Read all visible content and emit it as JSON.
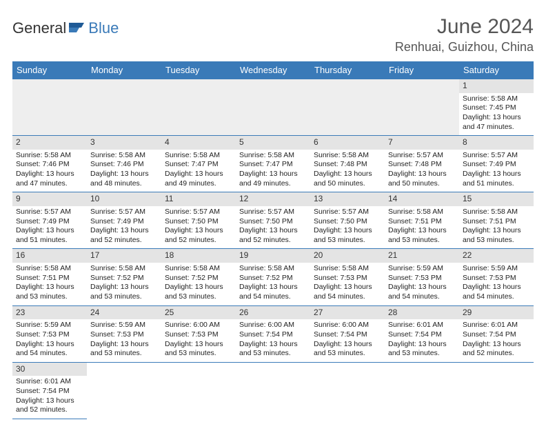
{
  "brand": {
    "part1": "General",
    "part2": "Blue"
  },
  "title": "June 2024",
  "location": "Renhuai, Guizhou, China",
  "colors": {
    "accent": "#3a7ab8",
    "header_bg": "#3a7ab8",
    "grey": "#eeeeee"
  },
  "weekdays": [
    "Sunday",
    "Monday",
    "Tuesday",
    "Wednesday",
    "Thursday",
    "Friday",
    "Saturday"
  ],
  "weeks": [
    [
      null,
      null,
      null,
      null,
      null,
      null,
      {
        "n": "1",
        "sunrise": "Sunrise: 5:58 AM",
        "sunset": "Sunset: 7:45 PM",
        "day": "Daylight: 13 hours and 47 minutes."
      }
    ],
    [
      {
        "n": "2",
        "sunrise": "Sunrise: 5:58 AM",
        "sunset": "Sunset: 7:46 PM",
        "day": "Daylight: 13 hours and 47 minutes."
      },
      {
        "n": "3",
        "sunrise": "Sunrise: 5:58 AM",
        "sunset": "Sunset: 7:46 PM",
        "day": "Daylight: 13 hours and 48 minutes."
      },
      {
        "n": "4",
        "sunrise": "Sunrise: 5:58 AM",
        "sunset": "Sunset: 7:47 PM",
        "day": "Daylight: 13 hours and 49 minutes."
      },
      {
        "n": "5",
        "sunrise": "Sunrise: 5:58 AM",
        "sunset": "Sunset: 7:47 PM",
        "day": "Daylight: 13 hours and 49 minutes."
      },
      {
        "n": "6",
        "sunrise": "Sunrise: 5:58 AM",
        "sunset": "Sunset: 7:48 PM",
        "day": "Daylight: 13 hours and 50 minutes."
      },
      {
        "n": "7",
        "sunrise": "Sunrise: 5:57 AM",
        "sunset": "Sunset: 7:48 PM",
        "day": "Daylight: 13 hours and 50 minutes."
      },
      {
        "n": "8",
        "sunrise": "Sunrise: 5:57 AM",
        "sunset": "Sunset: 7:49 PM",
        "day": "Daylight: 13 hours and 51 minutes."
      }
    ],
    [
      {
        "n": "9",
        "sunrise": "Sunrise: 5:57 AM",
        "sunset": "Sunset: 7:49 PM",
        "day": "Daylight: 13 hours and 51 minutes."
      },
      {
        "n": "10",
        "sunrise": "Sunrise: 5:57 AM",
        "sunset": "Sunset: 7:49 PM",
        "day": "Daylight: 13 hours and 52 minutes."
      },
      {
        "n": "11",
        "sunrise": "Sunrise: 5:57 AM",
        "sunset": "Sunset: 7:50 PM",
        "day": "Daylight: 13 hours and 52 minutes."
      },
      {
        "n": "12",
        "sunrise": "Sunrise: 5:57 AM",
        "sunset": "Sunset: 7:50 PM",
        "day": "Daylight: 13 hours and 52 minutes."
      },
      {
        "n": "13",
        "sunrise": "Sunrise: 5:57 AM",
        "sunset": "Sunset: 7:50 PM",
        "day": "Daylight: 13 hours and 53 minutes."
      },
      {
        "n": "14",
        "sunrise": "Sunrise: 5:58 AM",
        "sunset": "Sunset: 7:51 PM",
        "day": "Daylight: 13 hours and 53 minutes."
      },
      {
        "n": "15",
        "sunrise": "Sunrise: 5:58 AM",
        "sunset": "Sunset: 7:51 PM",
        "day": "Daylight: 13 hours and 53 minutes."
      }
    ],
    [
      {
        "n": "16",
        "sunrise": "Sunrise: 5:58 AM",
        "sunset": "Sunset: 7:51 PM",
        "day": "Daylight: 13 hours and 53 minutes."
      },
      {
        "n": "17",
        "sunrise": "Sunrise: 5:58 AM",
        "sunset": "Sunset: 7:52 PM",
        "day": "Daylight: 13 hours and 53 minutes."
      },
      {
        "n": "18",
        "sunrise": "Sunrise: 5:58 AM",
        "sunset": "Sunset: 7:52 PM",
        "day": "Daylight: 13 hours and 53 minutes."
      },
      {
        "n": "19",
        "sunrise": "Sunrise: 5:58 AM",
        "sunset": "Sunset: 7:52 PM",
        "day": "Daylight: 13 hours and 54 minutes."
      },
      {
        "n": "20",
        "sunrise": "Sunrise: 5:58 AM",
        "sunset": "Sunset: 7:53 PM",
        "day": "Daylight: 13 hours and 54 minutes."
      },
      {
        "n": "21",
        "sunrise": "Sunrise: 5:59 AM",
        "sunset": "Sunset: 7:53 PM",
        "day": "Daylight: 13 hours and 54 minutes."
      },
      {
        "n": "22",
        "sunrise": "Sunrise: 5:59 AM",
        "sunset": "Sunset: 7:53 PM",
        "day": "Daylight: 13 hours and 54 minutes."
      }
    ],
    [
      {
        "n": "23",
        "sunrise": "Sunrise: 5:59 AM",
        "sunset": "Sunset: 7:53 PM",
        "day": "Daylight: 13 hours and 54 minutes."
      },
      {
        "n": "24",
        "sunrise": "Sunrise: 5:59 AM",
        "sunset": "Sunset: 7:53 PM",
        "day": "Daylight: 13 hours and 53 minutes."
      },
      {
        "n": "25",
        "sunrise": "Sunrise: 6:00 AM",
        "sunset": "Sunset: 7:53 PM",
        "day": "Daylight: 13 hours and 53 minutes."
      },
      {
        "n": "26",
        "sunrise": "Sunrise: 6:00 AM",
        "sunset": "Sunset: 7:54 PM",
        "day": "Daylight: 13 hours and 53 minutes."
      },
      {
        "n": "27",
        "sunrise": "Sunrise: 6:00 AM",
        "sunset": "Sunset: 7:54 PM",
        "day": "Daylight: 13 hours and 53 minutes."
      },
      {
        "n": "28",
        "sunrise": "Sunrise: 6:01 AM",
        "sunset": "Sunset: 7:54 PM",
        "day": "Daylight: 13 hours and 53 minutes."
      },
      {
        "n": "29",
        "sunrise": "Sunrise: 6:01 AM",
        "sunset": "Sunset: 7:54 PM",
        "day": "Daylight: 13 hours and 52 minutes."
      }
    ],
    [
      {
        "n": "30",
        "sunrise": "Sunrise: 6:01 AM",
        "sunset": "Sunset: 7:54 PM",
        "day": "Daylight: 13 hours and 52 minutes."
      },
      null,
      null,
      null,
      null,
      null,
      null
    ]
  ]
}
